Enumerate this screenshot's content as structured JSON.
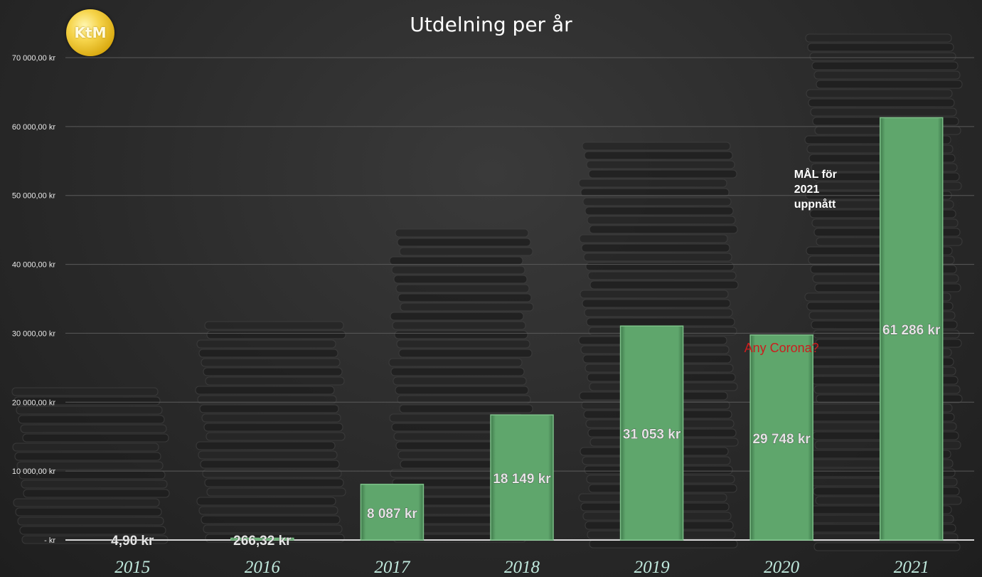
{
  "logo": {
    "text": "KtM"
  },
  "chart_data": {
    "type": "bar",
    "title": "Utdelning per år",
    "categories": [
      "2015",
      "2016",
      "2017",
      "2018",
      "2019",
      "2020",
      "2021"
    ],
    "values": [
      4.9,
      266.32,
      8087,
      18149,
      31053,
      29748,
      61286
    ],
    "data_labels": [
      "4,90 kr",
      "266,32 kr",
      "8 087 kr",
      "18 149 kr",
      "31 053 kr",
      "29 748 kr",
      "61 286 kr"
    ],
    "ylim": [
      0,
      70000
    ],
    "yticks": [
      0,
      10000,
      20000,
      30000,
      40000,
      50000,
      60000,
      70000
    ],
    "ytick_labels": [
      "-   kr",
      "10 000,00 kr",
      "20 000,00 kr",
      "30 000,00 kr",
      "40 000,00 kr",
      "50 000,00 kr",
      "60 000,00 kr",
      "70 000,00 kr"
    ],
    "xlabel": "",
    "ylabel": "",
    "grid": true,
    "annotations": [
      {
        "text": "Any Corona?",
        "category": "2020",
        "color": "#cc1d1d"
      },
      {
        "text": "MÅL för\n2021\nuppnått",
        "category": "2021",
        "color": "#ffffff"
      }
    ],
    "colors": {
      "bar": "#5fa66c",
      "bar_top": "#7cc088",
      "background": "#2b2b2b",
      "grid": "#5a5a5a",
      "year_label": "#bfe8dc"
    }
  }
}
